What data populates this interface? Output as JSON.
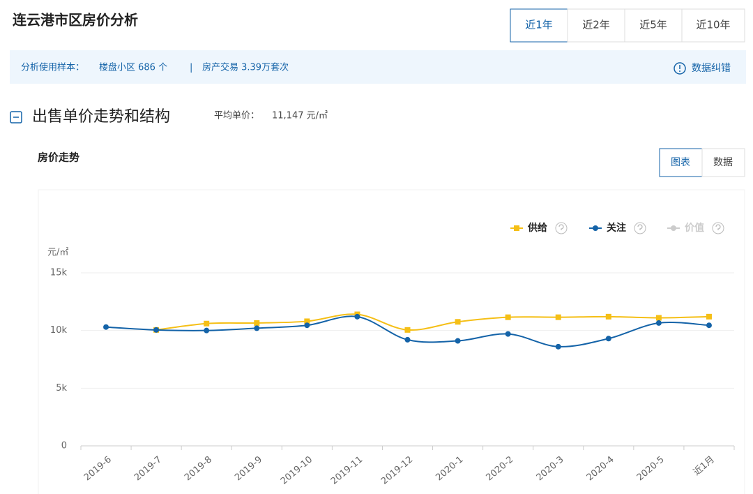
{
  "page": {
    "title": "连云港市区房价分析",
    "tabs": [
      "近1年",
      "近2年",
      "近5年",
      "近10年"
    ],
    "sample_label": "分析使用样本：",
    "sample_estates": "楼盘小区 686 个",
    "separator": "|",
    "sample_trades": "房产交易 3.39万套次",
    "correction": "数据纠错",
    "section_title": "出售单价走势和结构",
    "avg_label": "平均单价：",
    "avg_value": "11,147 元/㎡",
    "chart_heading": "房价走势",
    "view_toggle": [
      "图表",
      "数据"
    ]
  },
  "chart_data": {
    "type": "line",
    "y_label": "元/㎡",
    "categories": [
      "2019-6",
      "2019-7",
      "2019-8",
      "2019-9",
      "2019-10",
      "2019-11",
      "2019-12",
      "2020-1",
      "2020-2",
      "2020-3",
      "2020-4",
      "2020-5",
      "近1月"
    ],
    "series": [
      {
        "name": "供给",
        "color": "#f5bf16",
        "marker": "square",
        "values": [
          null,
          10050,
          10600,
          10650,
          10800,
          11400,
          10050,
          10750,
          11150,
          11150,
          11200,
          11100,
          11200
        ]
      },
      {
        "name": "关注",
        "color": "#1463a8",
        "marker": "circle",
        "values": [
          10300,
          10050,
          10000,
          10200,
          10450,
          11200,
          9200,
          9100,
          9700,
          8600,
          9300,
          10650,
          10450
        ]
      },
      {
        "name": "价值",
        "color": "#cccccc",
        "marker": "circle",
        "values": [
          null,
          null,
          null,
          null,
          null,
          null,
          null,
          null,
          null,
          null,
          null,
          null,
          null
        ]
      }
    ],
    "ylim": [
      0,
      15000
    ],
    "yticks": [
      0,
      {
        "value": 5000,
        "label": "5k"
      },
      {
        "value": 10000,
        "label": "10k"
      },
      {
        "value": 15000,
        "label": "15k"
      }
    ],
    "grid": true,
    "smooth": true
  }
}
